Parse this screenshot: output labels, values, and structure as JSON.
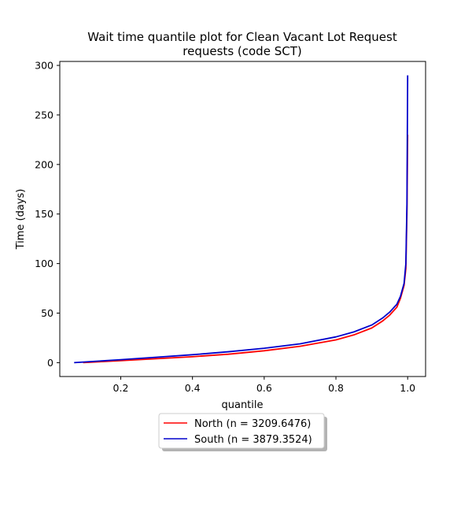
{
  "chart_data": {
    "type": "line",
    "title_line1": "Wait time quantile plot for Clean Vacant Lot Request",
    "title_line2": "requests (code SCT)",
    "xlabel": "quantile",
    "ylabel": "Time (days)",
    "xlim": [
      0.03,
      1.05
    ],
    "ylim": [
      -14,
      304
    ],
    "xticks": [
      0.2,
      0.4,
      0.6,
      0.8,
      1.0
    ],
    "xtick_labels": [
      "0.2",
      "0.4",
      "0.6",
      "0.8",
      "1.0"
    ],
    "yticks": [
      0,
      50,
      100,
      150,
      200,
      250,
      300
    ],
    "ytick_labels": [
      "0",
      "50",
      "100",
      "150",
      "200",
      "250",
      "300"
    ],
    "grid": false,
    "legend_position": "below",
    "series": [
      {
        "name": "North (n = 3209.6476)",
        "color": "#ff0000",
        "x": [
          0.095,
          0.2,
          0.3,
          0.4,
          0.5,
          0.6,
          0.7,
          0.8,
          0.85,
          0.9,
          0.93,
          0.95,
          0.97,
          0.98,
          0.99,
          0.995,
          0.998,
          1.0
        ],
        "y": [
          0,
          2,
          4,
          6,
          8.5,
          12,
          16.5,
          23,
          28,
          35,
          42,
          48,
          56,
          65,
          78,
          95,
          150,
          230
        ]
      },
      {
        "name": "South (n = 3879.3524)",
        "color": "#0000cc",
        "x": [
          0.07,
          0.2,
          0.3,
          0.4,
          0.5,
          0.6,
          0.7,
          0.8,
          0.85,
          0.9,
          0.93,
          0.95,
          0.97,
          0.98,
          0.99,
          0.995,
          0.998,
          1.0
        ],
        "y": [
          0,
          3,
          5.5,
          8,
          11,
          14.5,
          19,
          26,
          31,
          38,
          45,
          51,
          59,
          67,
          80,
          100,
          160,
          290
        ]
      }
    ]
  }
}
